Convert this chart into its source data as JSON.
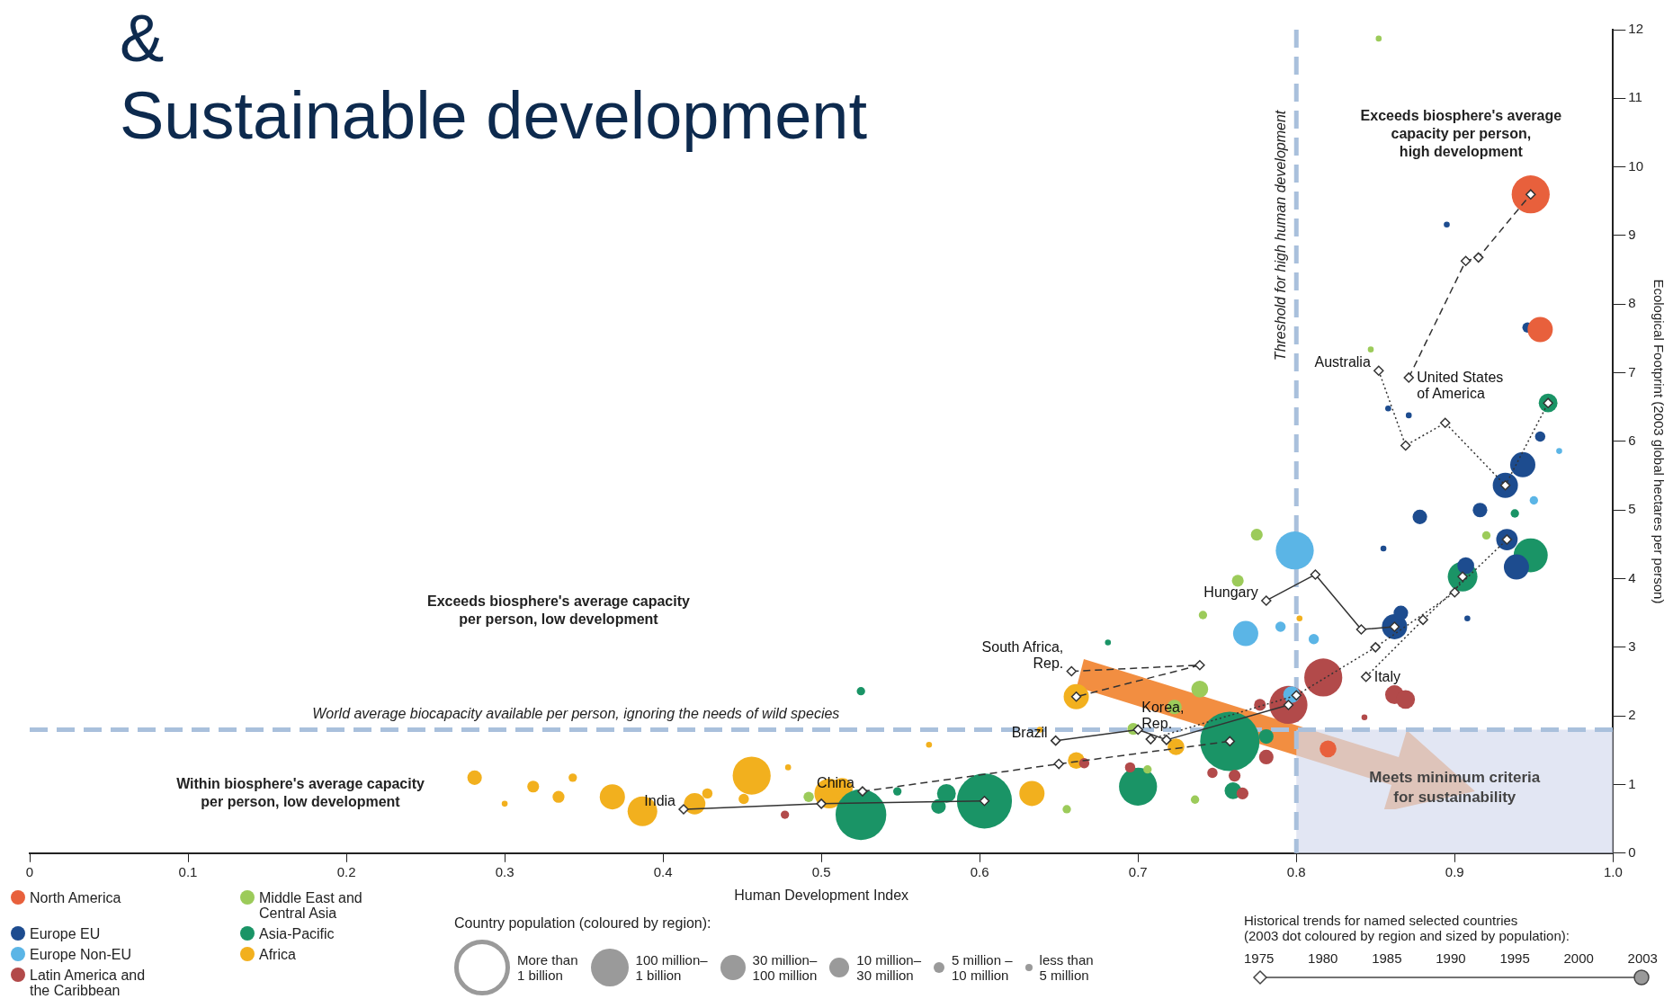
{
  "chart_data": {
    "type": "bubble",
    "title": "&\nSustainable development",
    "xlabel": "Human Development Index",
    "ylabel": "Ecological Footprint (2003 global hectares per person)",
    "xlim": [
      0,
      1
    ],
    "xticks": [
      0,
      0.1,
      0.2,
      0.3,
      0.4,
      0.5,
      0.6,
      0.7,
      0.8,
      0.9,
      {
        "value": 1,
        "label": "1.0"
      }
    ],
    "ylim": [
      0,
      12
    ],
    "yticks": [
      0,
      1,
      2,
      3,
      4,
      5,
      6,
      7,
      8,
      9,
      10,
      11,
      12
    ],
    "grid": false,
    "legend": "bottom left",
    "ref_lines": [
      {
        "axis": "y",
        "value": 1.8,
        "label": "World average biocapacity available per person, ignoring the needs of wild species",
        "color": "#a9c0dc",
        "line_style": "dashed"
      },
      {
        "axis": "x",
        "value": 0.8,
        "label": "Threshold for high human development",
        "color": "#a9c0dc",
        "line_style": "dashed"
      }
    ],
    "bands": [
      {
        "axis": "x",
        "from": 0.8,
        "to": 1,
        "label": "Meets minimum criteria for sustainability",
        "color": "#d5dcee"
      }
    ],
    "annotations": [
      "Exceeds biosphere's average capacity\nper person, low development",
      "Within biosphere's average capacity\nper person, low development",
      "Exceeds biosphere's average\ncapacity per person,\nhigh development",
      "Country population (coloured by region):",
      "More than\n1 billion",
      "100 million–\n1 billion",
      "30 million–\n100 million",
      "10 million–\n30 million",
      "5 million –\n10 million",
      "less than\n5 million",
      "Historical trends for named selected countries\n(2003 dot coloured by region and sized by population):",
      "1975",
      "1980",
      "1985",
      "1990",
      "1995",
      "2000",
      "2003"
    ],
    "series": [
      {
        "name": "North America",
        "color": "#e8603c",
        "x": [
          0.948,
          0.954,
          0.82
        ],
        "values": [
          9.6,
          7.63,
          1.52
        ],
        "sizes": [
          0.41,
          0.18,
          0.08
        ]
      },
      {
        "name": "Europe EU",
        "color": "#1d4c8f",
        "x": [
          0.895,
          0.946,
          0.858,
          0.871,
          0.954,
          0.943,
          0.932,
          0.916,
          0.878,
          0.933,
          0.939,
          0.907,
          0.862,
          0.866,
          0.855,
          0.908
        ],
        "values": [
          9.16,
          7.66,
          6.48,
          6.38,
          6.07,
          5.66,
          5.36,
          5.0,
          4.9,
          4.57,
          4.17,
          4.19,
          3.3,
          3.5,
          4.44,
          3.42
        ],
        "sizes": [
          0.01,
          0.03,
          0.01,
          0.01,
          0.03,
          0.18,
          0.18,
          0.06,
          0.06,
          0.13,
          0.18,
          0.08,
          0.18,
          0.06,
          0.01,
          0.01
        ]
      },
      {
        "name": "Europe Non-EU",
        "color": "#5bb5e6",
        "x": [
          0.799,
          0.768,
          0.79,
          0.811,
          0.95,
          0.966,
          0.797
        ],
        "values": [
          4.41,
          3.2,
          3.3,
          3.12,
          5.14,
          5.86,
          2.31
        ],
        "sizes": [
          0.41,
          0.18,
          0.03,
          0.03,
          0.02,
          0.01,
          0.08
        ]
      },
      {
        "name": "Latin America and the Caribbean",
        "color": "#b24a4a",
        "x": [
          0.817,
          0.795,
          0.862,
          0.869,
          0.777,
          0.766,
          0.761,
          0.781,
          0.695,
          0.666,
          0.477,
          0.843,
          0.747
        ],
        "values": [
          2.56,
          2.16,
          2.31,
          2.24,
          2.16,
          0.87,
          1.13,
          1.4,
          1.25,
          1.31,
          0.56,
          1.98,
          1.17
        ],
        "sizes": [
          0.41,
          0.41,
          0.1,
          0.1,
          0.04,
          0.04,
          0.04,
          0.06,
          0.03,
          0.03,
          0.02,
          0.01,
          0.03
        ]
      },
      {
        "name": "Middle East and Central Asia",
        "color": "#9ccb5a",
        "x": [
          0.852,
          0.847,
          0.775,
          0.763,
          0.741,
          0.739,
          0.723,
          0.697,
          0.92,
          0.492,
          0.736,
          0.655,
          0.706
        ],
        "values": [
          11.87,
          7.34,
          4.64,
          3.97,
          3.47,
          2.39,
          2.13,
          1.81,
          4.63,
          0.82,
          0.78,
          0.64,
          1.22
        ],
        "sizes": [
          0.01,
          0.01,
          0.04,
          0.04,
          0.02,
          0.08,
          0.06,
          0.04,
          0.02,
          0.03,
          0.02,
          0.02,
          0.02
        ]
      },
      {
        "name": "Asia-Pacific",
        "color": "#1a9466",
        "x": [
          0.758,
          0.603,
          0.525,
          0.7,
          0.579,
          0.574,
          0.548,
          0.525,
          0.681,
          0.76,
          0.781,
          0.905,
          0.948,
          0.959,
          0.938
        ],
        "values": [
          1.63,
          0.76,
          0.56,
          0.97,
          0.87,
          0.68,
          0.9,
          2.36,
          3.07,
          0.91,
          1.7,
          4.03,
          4.34,
          6.56,
          4.95
        ],
        "sizes": [
          1,
          0.86,
          0.73,
          0.41,
          0.1,
          0.06,
          0.02,
          0.02,
          0.01,
          0.08,
          0.06,
          0.25,
          0.33,
          0.1,
          0.02
        ]
      },
      {
        "name": "Africa",
        "color": "#f2b01e",
        "x": [
          0.661,
          0.281,
          0.318,
          0.334,
          0.343,
          0.3,
          0.368,
          0.387,
          0.42,
          0.428,
          0.456,
          0.479,
          0.451,
          0.505,
          0.513,
          0.633,
          0.661,
          0.724,
          0.638,
          0.802,
          0.568
        ],
        "values": [
          2.28,
          1.1,
          0.97,
          0.82,
          1.1,
          0.72,
          0.82,
          0.61,
          0.72,
          0.87,
          1.13,
          1.25,
          0.79,
          0.87,
          0.94,
          0.87,
          1.35,
          1.55,
          1.8,
          3.42,
          1.58
        ],
        "sizes": [
          0.18,
          0.06,
          0.04,
          0.04,
          0.02,
          0.01,
          0.18,
          0.25,
          0.13,
          0.03,
          0.41,
          0.01,
          0.03,
          0.25,
          0.13,
          0.18,
          0.08,
          0.08,
          0.01,
          0.01,
          0.01
        ]
      },
      {
        "type": "line",
        "name": "India",
        "color": "#333333",
        "line_style": "solid",
        "marker": "diamond",
        "x": [
          0.413,
          0.5,
          0.603
        ],
        "values": [
          0.64,
          0.72,
          0.76
        ]
      },
      {
        "type": "line",
        "name": "China",
        "color": "#333333",
        "line_style": "dashed",
        "marker": "diamond",
        "x": [
          0.526,
          0.65,
          0.758
        ],
        "values": [
          0.9,
          1.3,
          1.63
        ]
      },
      {
        "type": "line",
        "name": "Brazil",
        "color": "#333333",
        "line_style": "solid",
        "marker": "diamond",
        "x": [
          0.648,
          0.7,
          0.718,
          0.795
        ],
        "values": [
          1.64,
          1.8,
          1.65,
          2.16
        ]
      },
      {
        "type": "line",
        "name": "Korea,\nRep.",
        "color": "#333333",
        "line_style": "dotted",
        "marker": "diamond",
        "x": [
          0.708,
          0.8,
          0.85,
          0.9,
          0.905
        ],
        "values": [
          1.66,
          2.3,
          3.0,
          3.8,
          4.03
        ]
      },
      {
        "type": "line",
        "name": "South Africa,\nRep.",
        "color": "#333333",
        "line_style": "dashed",
        "marker": "diamond",
        "x": [
          0.658,
          0.739,
          0.661
        ],
        "values": [
          2.65,
          2.74,
          2.28
        ]
      },
      {
        "type": "line",
        "name": "Hungary",
        "color": "#333333",
        "line_style": "solid",
        "marker": "diamond",
        "x": [
          0.781,
          0.812,
          0.841,
          0.862
        ],
        "values": [
          3.68,
          4.06,
          3.26,
          3.3
        ]
      },
      {
        "type": "line",
        "name": "Italy",
        "color": "#333333",
        "line_style": "dotted",
        "marker": "diamond",
        "x": [
          0.844,
          0.88,
          0.933
        ],
        "values": [
          2.57,
          3.4,
          4.57
        ]
      },
      {
        "type": "line",
        "name": "Australia",
        "color": "#333333",
        "line_style": "dotted",
        "marker": "diamond",
        "x": [
          0.852,
          0.869,
          0.894,
          0.932,
          0.959
        ],
        "values": [
          7.03,
          5.94,
          6.27,
          5.36,
          6.56
        ]
      },
      {
        "type": "line",
        "name": "United States\nof America",
        "color": "#333333",
        "line_style": "dashed",
        "marker": "diamond",
        "x": [
          0.871,
          0.907,
          0.915,
          0.948
        ],
        "values": [
          6.93,
          8.63,
          8.68,
          9.6
        ]
      }
    ]
  }
}
